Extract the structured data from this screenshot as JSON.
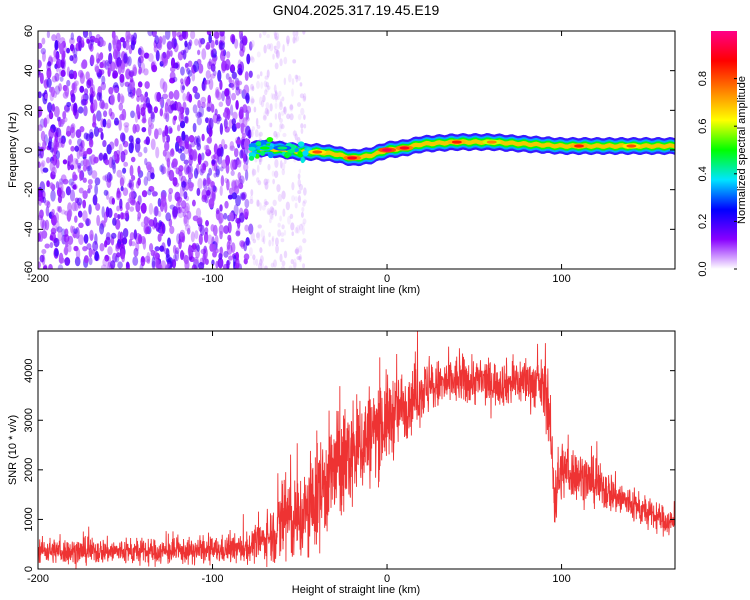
{
  "title": "GN04.2025.317.19.45.E19",
  "chart_data": [
    {
      "type": "heatmap",
      "name": "spectrogram",
      "xlabel": "Height of straight line (km)",
      "ylabel": "Frequency (Hz)",
      "xlim": [
        -200,
        165
      ],
      "ylim": [
        -60,
        60
      ],
      "xticks": [
        -200,
        -100,
        0,
        100
      ],
      "yticks": [
        60,
        40,
        20,
        0,
        -20,
        -40,
        -60
      ],
      "grid": false,
      "colorbar": {
        "label": "Normalized spectral amplitude",
        "range": [
          0.0,
          1.0
        ],
        "ticks": [
          "0.0",
          "0.2",
          "0.4",
          "0.6",
          "0.8"
        ],
        "colors": [
          "#ffffff",
          "#8800ff",
          "#0000ff",
          "#00e5ff",
          "#00ff00",
          "#ffff00",
          "#ff8000",
          "#ff0000",
          "#ff0088"
        ]
      },
      "features": {
        "noise_region_km": [
          -200,
          -78
        ],
        "sparse_region_km": [
          -78,
          -47
        ],
        "band_center_freq_hz": [
          {
            "x": -78,
            "f": 0
          },
          {
            "x": -70,
            "f": 1
          },
          {
            "x": -60,
            "f": 0
          },
          {
            "x": -50,
            "f": -1
          },
          {
            "x": -40,
            "f": -1
          },
          {
            "x": -30,
            "f": -2
          },
          {
            "x": -20,
            "f": -4
          },
          {
            "x": -10,
            "f": -3
          },
          {
            "x": 0,
            "f": 0
          },
          {
            "x": 10,
            "f": 1
          },
          {
            "x": 20,
            "f": 3
          },
          {
            "x": 40,
            "f": 4
          },
          {
            "x": 60,
            "f": 4
          },
          {
            "x": 80,
            "f": 3
          },
          {
            "x": 100,
            "f": 2
          },
          {
            "x": 130,
            "f": 2
          },
          {
            "x": 165,
            "f": 2
          }
        ],
        "peak_points": [
          {
            "x": -70,
            "f": 1,
            "amp": 0.5
          },
          {
            "x": -60,
            "f": 1,
            "amp": 0.45
          },
          {
            "x": -40,
            "f": -1,
            "amp": 0.8
          },
          {
            "x": -20,
            "f": -4,
            "amp": 0.9
          },
          {
            "x": 0,
            "f": 0,
            "amp": 0.95
          },
          {
            "x": 10,
            "f": 1,
            "amp": 0.9
          },
          {
            "x": 40,
            "f": 4,
            "amp": 0.85
          },
          {
            "x": 60,
            "f": 4,
            "amp": 0.75
          },
          {
            "x": 110,
            "f": 2,
            "amp": 0.85
          },
          {
            "x": 140,
            "f": 2,
            "amp": 0.8
          }
        ]
      }
    },
    {
      "type": "line",
      "name": "snr",
      "xlabel": "Height of straight line (km)",
      "ylabel": "SNR (10 * v/v)",
      "xlim": [
        -200,
        165
      ],
      "ylim": [
        0,
        4800
      ],
      "xticks": [
        -200,
        -100,
        0,
        100
      ],
      "yticks": [
        0,
        1000,
        2000,
        3000,
        4000
      ],
      "color": "#ee3333",
      "grid": false,
      "envelope": {
        "x": [
          -200,
          -180,
          -160,
          -140,
          -120,
          -100,
          -80,
          -70,
          -62,
          -58,
          -55,
          -50,
          -45,
          -40,
          -30,
          -20,
          -10,
          0,
          10,
          20,
          30,
          40,
          50,
          60,
          70,
          80,
          88,
          92,
          96,
          100,
          110,
          120,
          130,
          140,
          150,
          165
        ],
        "mean": [
          380,
          350,
          360,
          340,
          350,
          370,
          420,
          600,
          800,
          1200,
          900,
          1000,
          1100,
          1500,
          2000,
          2300,
          2700,
          3000,
          3300,
          3600,
          3700,
          3800,
          3800,
          3750,
          3750,
          3800,
          3700,
          3500,
          1500,
          2000,
          1900,
          1700,
          1500,
          1300,
          1100,
          900
        ],
        "spread": [
          250,
          260,
          250,
          260,
          250,
          260,
          300,
          400,
          700,
          1500,
          800,
          900,
          1000,
          1100,
          1100,
          1100,
          1000,
          900,
          700,
          600,
          500,
          500,
          500,
          450,
          450,
          500,
          500,
          700,
          800,
          600,
          500,
          450,
          400,
          350,
          300,
          280
        ]
      }
    }
  ]
}
